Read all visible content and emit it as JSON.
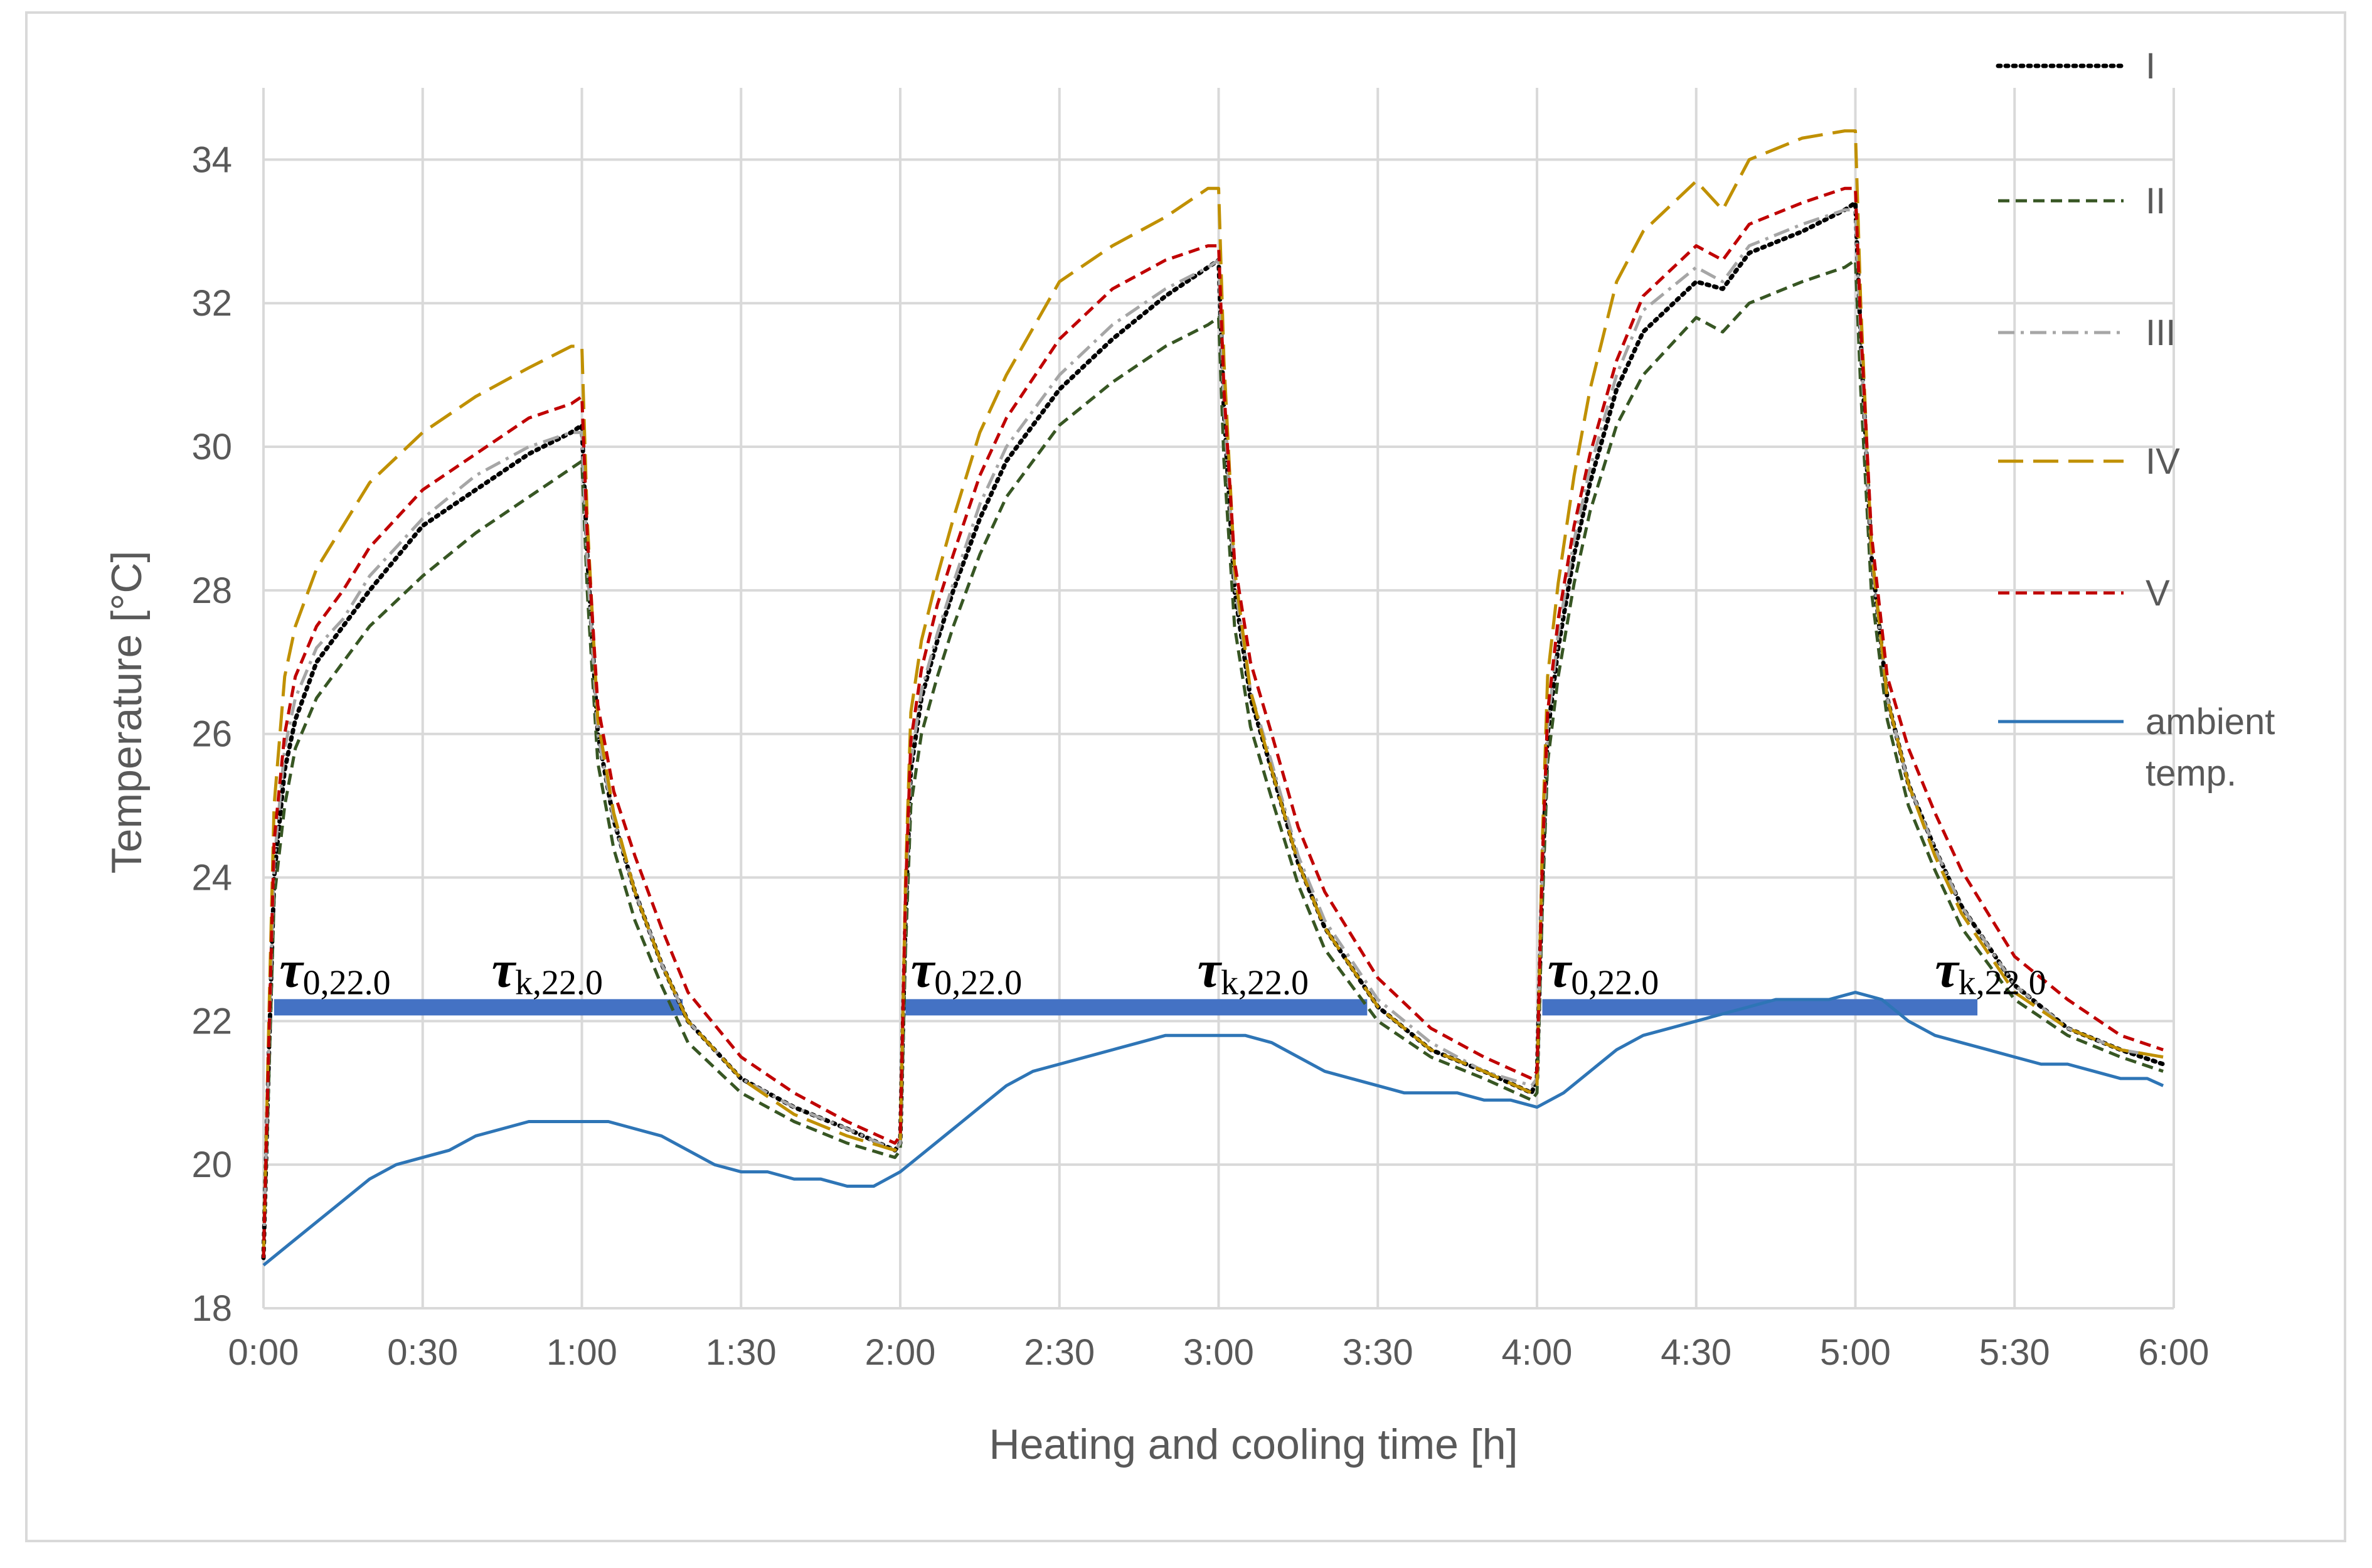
{
  "chart_data": {
    "type": "line",
    "title": "",
    "xlabel": "Heating and cooling time [h]",
    "ylabel": "Temperature [°C]",
    "xlim": [
      0,
      360
    ],
    "ylim": [
      18,
      35
    ],
    "x_unit": "minutes",
    "x_ticks": [
      {
        "value": 0,
        "label": "0:00"
      },
      {
        "value": 30,
        "label": "0:30"
      },
      {
        "value": 60,
        "label": "1:00"
      },
      {
        "value": 90,
        "label": "1:30"
      },
      {
        "value": 120,
        "label": "2:00"
      },
      {
        "value": 150,
        "label": "2:30"
      },
      {
        "value": 180,
        "label": "3:00"
      },
      {
        "value": 210,
        "label": "3:30"
      },
      {
        "value": 240,
        "label": "4:00"
      },
      {
        "value": 270,
        "label": "4:30"
      },
      {
        "value": 300,
        "label": "5:00"
      },
      {
        "value": 330,
        "label": "5:30"
      },
      {
        "value": 360,
        "label": "6:00"
      }
    ],
    "y_ticks": [
      18,
      20,
      22,
      24,
      26,
      28,
      30,
      32,
      34
    ],
    "grid": true,
    "legend_position": "right",
    "series": [
      {
        "name": "I",
        "color": "#000000",
        "dash": "dotted",
        "x": [
          0,
          1,
          2,
          4,
          6,
          10,
          15,
          20,
          30,
          40,
          50,
          58,
          60,
          61,
          63,
          66,
          70,
          75,
          80,
          90,
          100,
          110,
          119,
          120,
          121,
          122,
          124,
          127,
          130,
          135,
          140,
          150,
          160,
          170,
          178,
          180,
          181,
          183,
          186,
          190,
          195,
          200,
          210,
          220,
          230,
          239,
          240,
          241,
          242,
          244,
          247,
          250,
          255,
          260,
          270,
          275,
          280,
          290,
          298,
          300,
          301,
          303,
          306,
          310,
          315,
          320,
          330,
          340,
          350,
          358
        ],
        "y": [
          18.7,
          21.5,
          24.0,
          25.5,
          26.2,
          27.0,
          27.5,
          28.0,
          28.9,
          29.4,
          29.9,
          30.2,
          30.3,
          28.5,
          26.0,
          24.8,
          23.8,
          22.8,
          22.0,
          21.2,
          20.8,
          20.5,
          20.2,
          20.3,
          23.5,
          25.5,
          26.5,
          27.3,
          28.0,
          29.0,
          29.8,
          30.8,
          31.5,
          32.1,
          32.5,
          32.6,
          30.5,
          28.0,
          26.5,
          25.5,
          24.2,
          23.3,
          22.2,
          21.6,
          21.3,
          21.0,
          21.2,
          24.0,
          26.0,
          27.2,
          28.5,
          29.5,
          30.8,
          31.6,
          32.3,
          32.2,
          32.7,
          33.0,
          33.3,
          33.4,
          31.5,
          28.5,
          26.5,
          25.3,
          24.4,
          23.6,
          22.5,
          21.9,
          21.6,
          21.4
        ]
      },
      {
        "name": "II",
        "color": "#375623",
        "dash": "dashed",
        "x": [
          0,
          1,
          2,
          4,
          6,
          10,
          15,
          20,
          30,
          40,
          50,
          58,
          60,
          61,
          63,
          66,
          70,
          75,
          80,
          90,
          100,
          110,
          119,
          120,
          121,
          122,
          124,
          127,
          130,
          135,
          140,
          150,
          160,
          170,
          178,
          180,
          181,
          183,
          186,
          190,
          195,
          200,
          210,
          220,
          230,
          239,
          240,
          241,
          242,
          244,
          247,
          250,
          255,
          260,
          270,
          275,
          280,
          290,
          298,
          300,
          301,
          303,
          306,
          310,
          315,
          320,
          330,
          340,
          350,
          358
        ],
        "y": [
          18.7,
          21.2,
          23.7,
          25.0,
          25.8,
          26.5,
          27.0,
          27.5,
          28.2,
          28.8,
          29.3,
          29.7,
          29.8,
          28.0,
          25.6,
          24.4,
          23.4,
          22.5,
          21.7,
          21.0,
          20.6,
          20.3,
          20.1,
          20.2,
          23.0,
          25.0,
          26.0,
          26.8,
          27.5,
          28.5,
          29.3,
          30.3,
          30.9,
          31.4,
          31.7,
          31.8,
          29.8,
          27.5,
          26.1,
          25.1,
          23.9,
          23.0,
          22.0,
          21.5,
          21.2,
          20.9,
          21.0,
          23.6,
          25.6,
          26.8,
          28.1,
          29.1,
          30.3,
          31.0,
          31.8,
          31.6,
          32.0,
          32.3,
          32.5,
          32.6,
          30.8,
          28.0,
          26.2,
          25.0,
          24.1,
          23.3,
          22.3,
          21.8,
          21.5,
          21.3
        ]
      },
      {
        "name": "III",
        "color": "#a6a6a6",
        "dash": "dashdot",
        "x": [
          0,
          1,
          2,
          4,
          6,
          10,
          15,
          20,
          30,
          40,
          50,
          58,
          60,
          61,
          63,
          66,
          70,
          75,
          80,
          90,
          100,
          110,
          119,
          120,
          121,
          122,
          124,
          127,
          130,
          135,
          140,
          150,
          160,
          170,
          178,
          180,
          181,
          183,
          186,
          190,
          195,
          200,
          210,
          220,
          230,
          239,
          240,
          241,
          242,
          244,
          247,
          250,
          255,
          260,
          270,
          275,
          280,
          290,
          298,
          300,
          301,
          303,
          306,
          310,
          315,
          320,
          330,
          340,
          350,
          358
        ],
        "y": [
          18.7,
          21.6,
          24.2,
          25.8,
          26.5,
          27.2,
          27.6,
          28.2,
          29.0,
          29.6,
          30.0,
          30.2,
          30.2,
          28.4,
          26.0,
          24.8,
          23.8,
          22.8,
          22.0,
          21.2,
          20.8,
          20.5,
          20.2,
          20.3,
          23.6,
          25.6,
          26.6,
          27.4,
          28.1,
          29.2,
          30.0,
          31.0,
          31.7,
          32.2,
          32.5,
          32.6,
          30.6,
          28.1,
          26.6,
          25.6,
          24.3,
          23.4,
          22.3,
          21.7,
          21.3,
          21.1,
          21.2,
          24.1,
          26.1,
          27.4,
          28.7,
          29.7,
          31.0,
          31.9,
          32.5,
          32.3,
          32.8,
          33.1,
          33.3,
          33.3,
          31.5,
          28.5,
          26.5,
          25.3,
          24.4,
          23.6,
          22.5,
          21.9,
          21.6,
          21.5
        ]
      },
      {
        "name": "IV",
        "color": "#c09000",
        "dash": "longdash",
        "x": [
          0,
          1,
          2,
          4,
          6,
          10,
          15,
          20,
          30,
          40,
          50,
          58,
          60,
          61,
          63,
          66,
          70,
          75,
          80,
          90,
          100,
          110,
          119,
          120,
          121,
          122,
          124,
          127,
          130,
          135,
          140,
          150,
          160,
          170,
          178,
          180,
          181,
          183,
          186,
          190,
          195,
          200,
          210,
          220,
          230,
          239,
          240,
          241,
          242,
          244,
          247,
          250,
          255,
          260,
          270,
          275,
          280,
          290,
          298,
          300,
          301,
          303,
          306,
          310,
          315,
          320,
          330,
          340,
          350,
          358
        ],
        "y": [
          18.7,
          22.0,
          25.0,
          26.8,
          27.5,
          28.3,
          28.9,
          29.5,
          30.2,
          30.7,
          31.1,
          31.4,
          31.4,
          29.0,
          26.2,
          24.9,
          23.8,
          22.8,
          22.0,
          21.2,
          20.7,
          20.4,
          20.2,
          20.3,
          24.0,
          26.3,
          27.3,
          28.2,
          29.0,
          30.2,
          31.0,
          32.3,
          32.8,
          33.2,
          33.6,
          33.6,
          31.2,
          28.3,
          26.6,
          25.5,
          24.2,
          23.3,
          22.2,
          21.6,
          21.3,
          21.0,
          21.1,
          24.5,
          26.8,
          28.1,
          29.6,
          30.8,
          32.3,
          33.0,
          33.7,
          33.3,
          34.0,
          34.3,
          34.4,
          34.4,
          32.0,
          28.6,
          26.5,
          25.3,
          24.3,
          23.5,
          22.4,
          21.9,
          21.6,
          21.5
        ]
      },
      {
        "name": "V",
        "color": "#c00000",
        "dash": "dashed",
        "x": [
          0,
          1,
          2,
          4,
          6,
          10,
          15,
          20,
          30,
          40,
          50,
          58,
          60,
          61,
          63,
          66,
          70,
          75,
          80,
          90,
          100,
          110,
          119,
          120,
          121,
          122,
          124,
          127,
          130,
          135,
          140,
          150,
          160,
          170,
          178,
          180,
          181,
          183,
          186,
          190,
          195,
          200,
          210,
          220,
          230,
          239,
          240,
          241,
          242,
          244,
          247,
          250,
          255,
          260,
          270,
          275,
          280,
          290,
          298,
          300,
          301,
          303,
          306,
          310,
          315,
          320,
          330,
          340,
          350,
          358
        ],
        "y": [
          18.7,
          21.7,
          24.5,
          26.0,
          26.8,
          27.5,
          28.0,
          28.6,
          29.4,
          29.9,
          30.4,
          30.6,
          30.7,
          28.8,
          26.4,
          25.2,
          24.3,
          23.3,
          22.4,
          21.5,
          21.0,
          20.6,
          20.3,
          20.4,
          23.8,
          25.9,
          26.9,
          27.8,
          28.5,
          29.6,
          30.4,
          31.5,
          32.2,
          32.6,
          32.8,
          32.8,
          30.8,
          28.4,
          27.0,
          26.0,
          24.7,
          23.8,
          22.6,
          21.9,
          21.5,
          21.2,
          21.3,
          24.2,
          26.3,
          27.6,
          28.9,
          29.9,
          31.2,
          32.1,
          32.8,
          32.6,
          33.1,
          33.4,
          33.6,
          33.6,
          31.7,
          28.8,
          26.8,
          25.8,
          24.9,
          24.1,
          22.9,
          22.3,
          21.8,
          21.6
        ]
      },
      {
        "name": "ambient temp.",
        "color": "#2e75b6",
        "dash": "solid",
        "x": [
          0,
          5,
          10,
          15,
          20,
          25,
          30,
          35,
          40,
          45,
          50,
          55,
          60,
          65,
          70,
          75,
          80,
          85,
          90,
          95,
          100,
          105,
          110,
          115,
          120,
          125,
          130,
          135,
          140,
          145,
          150,
          155,
          160,
          165,
          170,
          175,
          180,
          185,
          190,
          195,
          200,
          205,
          210,
          215,
          220,
          225,
          230,
          235,
          240,
          245,
          250,
          255,
          260,
          265,
          270,
          275,
          280,
          285,
          290,
          295,
          300,
          305,
          310,
          315,
          320,
          325,
          330,
          335,
          340,
          345,
          350,
          355,
          358
        ],
        "y": [
          18.6,
          18.9,
          19.2,
          19.5,
          19.8,
          20.0,
          20.1,
          20.2,
          20.4,
          20.5,
          20.6,
          20.6,
          20.6,
          20.6,
          20.5,
          20.4,
          20.2,
          20.0,
          19.9,
          19.9,
          19.8,
          19.8,
          19.7,
          19.7,
          19.9,
          20.2,
          20.5,
          20.8,
          21.1,
          21.3,
          21.4,
          21.5,
          21.6,
          21.7,
          21.8,
          21.8,
          21.8,
          21.8,
          21.7,
          21.5,
          21.3,
          21.2,
          21.1,
          21.0,
          21.0,
          21.0,
          20.9,
          20.9,
          20.8,
          21.0,
          21.3,
          21.6,
          21.8,
          21.9,
          22.0,
          22.1,
          22.2,
          22.3,
          22.3,
          22.3,
          22.4,
          22.3,
          22.0,
          21.8,
          21.7,
          21.6,
          21.5,
          21.4,
          21.4,
          21.3,
          21.2,
          21.2,
          21.1
        ]
      }
    ],
    "reference_line": {
      "y": 22.0,
      "color": "#4472c4",
      "segments": [
        [
          2,
          79
        ],
        [
          121,
          208
        ],
        [
          241,
          323
        ]
      ],
      "annotations": [
        {
          "symbol": "τ",
          "subscript": "0,22.0",
          "x": 3
        },
        {
          "symbol": "τ",
          "subscript": "k,22.0",
          "x": 43
        },
        {
          "symbol": "τ",
          "subscript": "0,22.0",
          "x": 122
        },
        {
          "symbol": "τ",
          "subscript": "k,22.0",
          "x": 176
        },
        {
          "symbol": "τ",
          "subscript": "0,22.0",
          "x": 242
        },
        {
          "symbol": "τ",
          "subscript": "k,22.0",
          "x": 315
        }
      ]
    }
  }
}
